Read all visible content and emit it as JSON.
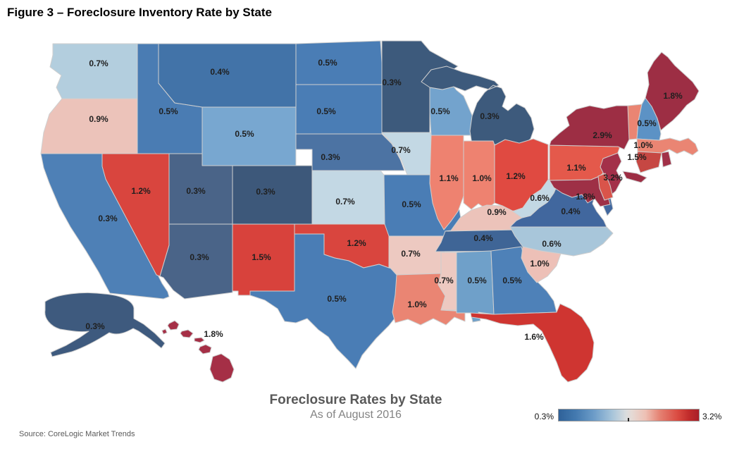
{
  "figure_title": "Figure 3 – Foreclosure Inventory Rate by State",
  "source": "Source: CoreLogic Market Trends",
  "chart_data": {
    "type": "heatmap",
    "subtype": "us-choropleth-map",
    "title": "Foreclosure Rates by State",
    "subtitle": "As of August 2016",
    "value_unit": "foreclosure inventory rate (percent of mortgaged homes)",
    "legend": {
      "min_label": "0.3%",
      "max_label": "3.2%",
      "min_value": 0.3,
      "max_value": 3.2,
      "low_color": "#2F6299",
      "high_color": "#A81F28"
    },
    "states": [
      {
        "id": "WA",
        "value": "0.7%",
        "color": "#B3CEDE"
      },
      {
        "id": "OR",
        "value": "0.9%",
        "color": "#ECC3BA"
      },
      {
        "id": "CA",
        "value": "0.3%",
        "color": "#4E80B6"
      },
      {
        "id": "NV",
        "value": "1.2%",
        "color": "#D9453E"
      },
      {
        "id": "ID",
        "value": "0.5%",
        "color": "#4A7CB3"
      },
      {
        "id": "MT",
        "value": "0.4%",
        "color": "#4273A8"
      },
      {
        "id": "WY",
        "value": "0.5%",
        "color": "#78A7D0"
      },
      {
        "id": "UT",
        "value": "0.3%",
        "color": "#4A6488"
      },
      {
        "id": "CO",
        "value": "0.3%",
        "color": "#3D587A"
      },
      {
        "id": "AZ",
        "value": "0.3%",
        "color": "#4A6488"
      },
      {
        "id": "NM",
        "value": "1.5%",
        "color": "#D8423C"
      },
      {
        "id": "ND",
        "value": "0.5%",
        "color": "#4A7DB5"
      },
      {
        "id": "SD",
        "value": "0.5%",
        "color": "#4A7DB5"
      },
      {
        "id": "NE",
        "value": "0.3%",
        "color": "#4C73A3"
      },
      {
        "id": "KS",
        "value": "0.7%",
        "color": "#C3D8E4"
      },
      {
        "id": "OK",
        "value": "1.2%",
        "color": "#D9453E"
      },
      {
        "id": "TX",
        "value": "0.5%",
        "color": "#4A7DB5"
      },
      {
        "id": "MN",
        "value": "0.3%",
        "color": "#3D5A7C"
      },
      {
        "id": "IA",
        "value": "0.7%",
        "color": "#C3D8E4"
      },
      {
        "id": "MO",
        "value": "0.5%",
        "color": "#4A7DB5"
      },
      {
        "id": "AR",
        "value": "0.7%",
        "color": "#EDC9C1"
      },
      {
        "id": "LA",
        "value": "1.0%",
        "color": "#EA8573"
      },
      {
        "id": "WI",
        "value": "0.5%",
        "color": "#73A3CD"
      },
      {
        "id": "IL",
        "value": "1.1%",
        "color": "#EE8270"
      },
      {
        "id": "MI",
        "value": "0.3%",
        "color": "#3D5A7C"
      },
      {
        "id": "IN",
        "value": "1.0%",
        "color": "#EE8270"
      },
      {
        "id": "OH",
        "value": "1.2%",
        "color": "#E04A41"
      },
      {
        "id": "KY",
        "value": "0.9%",
        "color": "#ECC3BA"
      },
      {
        "id": "TN",
        "value": "0.4%",
        "color": "#3F6596"
      },
      {
        "id": "MS",
        "value": "0.7%",
        "color": "#EDC9C1"
      },
      {
        "id": "AL",
        "value": "0.5%",
        "color": "#6FA0C9"
      },
      {
        "id": "GA",
        "value": "0.5%",
        "color": "#4E81B8"
      },
      {
        "id": "FL",
        "value": "1.6%",
        "color": "#CF3531"
      },
      {
        "id": "SC",
        "value": "1.0%",
        "color": "#EDC0B7"
      },
      {
        "id": "NC",
        "value": "0.6%",
        "color": "#A8C6DA"
      },
      {
        "id": "VA",
        "value": "0.4%",
        "color": "#41679E"
      },
      {
        "id": "WV",
        "value": "0.6%",
        "color": "#C3D8E4"
      },
      {
        "id": "PA",
        "value": "1.1%",
        "color": "#E4594B"
      },
      {
        "id": "NY",
        "value": "2.9%",
        "color": "#9D2E44"
      },
      {
        "id": "NJ",
        "value": "3.2%",
        "color": "#A33049"
      },
      {
        "id": "MD",
        "value": "1.8%",
        "color": "#9E3046"
      },
      {
        "id": "DE",
        "value": null,
        "color": "#D9544A"
      },
      {
        "id": "VT",
        "value": null,
        "color": "#EA8573"
      },
      {
        "id": "NH",
        "value": "0.5%",
        "color": "#5C92C5"
      },
      {
        "id": "ME",
        "value": "1.8%",
        "color": "#9D2E44"
      },
      {
        "id": "MA",
        "value": "1.0%",
        "color": "#EA8573"
      },
      {
        "id": "CT",
        "value": "1.5%",
        "color": "#C64743"
      },
      {
        "id": "RI",
        "value": null,
        "color": "#A13048"
      },
      {
        "id": "AK",
        "value": "0.3%",
        "color": "#3E5A7E"
      },
      {
        "id": "HI",
        "value": "1.8%",
        "color": "#A52F46"
      }
    ]
  }
}
